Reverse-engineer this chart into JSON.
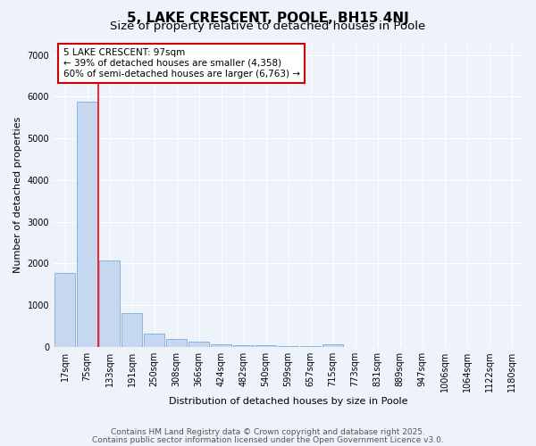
{
  "title": "5, LAKE CRESCENT, POOLE, BH15 4NJ",
  "subtitle": "Size of property relative to detached houses in Poole",
  "xlabel": "Distribution of detached houses by size in Poole",
  "ylabel": "Number of detached properties",
  "categories": [
    "17sqm",
    "75sqm",
    "133sqm",
    "191sqm",
    "250sqm",
    "308sqm",
    "366sqm",
    "424sqm",
    "482sqm",
    "540sqm",
    "599sqm",
    "657sqm",
    "715sqm",
    "773sqm",
    "831sqm",
    "889sqm",
    "947sqm",
    "1006sqm",
    "1064sqm",
    "1122sqm",
    "1180sqm"
  ],
  "values": [
    1780,
    5870,
    2080,
    820,
    330,
    195,
    120,
    75,
    50,
    35,
    25,
    20,
    70,
    0,
    0,
    0,
    0,
    0,
    0,
    0,
    0
  ],
  "bar_color": "#c5d8f0",
  "bar_edge_color": "#7aaddc",
  "vline_x": 1.5,
  "vline_color": "red",
  "annotation_text": "5 LAKE CRESCENT: 97sqm\n← 39% of detached houses are smaller (4,358)\n60% of semi-detached houses are larger (6,763) →",
  "annotation_box_color": "#ffffff",
  "annotation_box_edge": "#cc0000",
  "ylim": [
    0,
    7300
  ],
  "yticks": [
    0,
    1000,
    2000,
    3000,
    4000,
    5000,
    6000,
    7000
  ],
  "footer1": "Contains HM Land Registry data © Crown copyright and database right 2025.",
  "footer2": "Contains public sector information licensed under the Open Government Licence v3.0.",
  "background_color": "#eef2fa",
  "plot_bg_color": "#eef2fa",
  "title_fontsize": 11,
  "subtitle_fontsize": 9.5,
  "axis_label_fontsize": 8,
  "tick_fontsize": 7,
  "annotation_fontsize": 7.5,
  "footer_fontsize": 6.5
}
